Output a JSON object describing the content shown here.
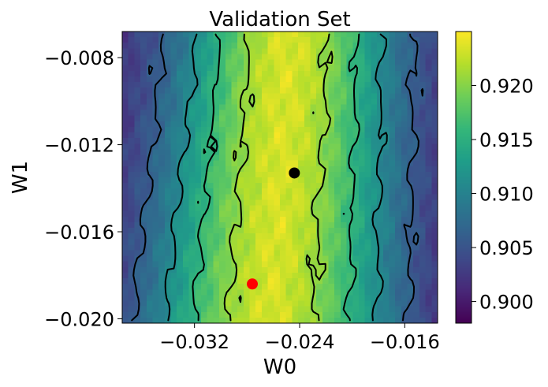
{
  "chart_data": {
    "type": "heatmap",
    "title": "Validation Set",
    "xlabel": "W0",
    "ylabel": "W1",
    "xlim": [
      -0.0375,
      -0.0135
    ],
    "ylim": [
      -0.0202,
      -0.0068
    ],
    "x_ticks": [
      {
        "value": -0.032,
        "label": "−0.032"
      },
      {
        "value": -0.024,
        "label": "−0.024"
      },
      {
        "value": -0.016,
        "label": "−0.016"
      }
    ],
    "y_ticks": [
      {
        "value": -0.008,
        "label": "−0.008"
      },
      {
        "value": -0.012,
        "label": "−0.012"
      },
      {
        "value": -0.016,
        "label": "−0.016"
      },
      {
        "value": -0.02,
        "label": "−0.020"
      }
    ],
    "colorbar": {
      "colormap": "viridis",
      "vmin": 0.898,
      "vmax": 0.925,
      "ticks": [
        {
          "value": 0.9,
          "label": "0.900"
        },
        {
          "value": 0.905,
          "label": "0.905"
        },
        {
          "value": 0.91,
          "label": "0.910"
        },
        {
          "value": 0.915,
          "label": "0.915"
        },
        {
          "value": 0.92,
          "label": "0.920"
        }
      ]
    },
    "surface": {
      "peak_value": 0.9235,
      "ridge_x_at_top": -0.0248,
      "ridge_x_at_bottom": -0.0262,
      "ridge_tilt": -0.5,
      "width_at_top": 0.0098,
      "width_at_bottom": 0.0132,
      "contour_levels": [
        0.906,
        0.911,
        0.9155,
        0.9205
      ]
    },
    "markers": [
      {
        "name": "black-point",
        "x": -0.0244,
        "y": -0.0133,
        "color": "#000000"
      },
      {
        "name": "red-point",
        "x": -0.0276,
        "y": -0.0184,
        "color": "#ff0000"
      }
    ]
  }
}
